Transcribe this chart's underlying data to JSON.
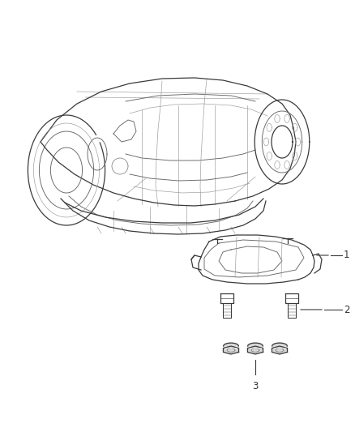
{
  "background_color": "#ffffff",
  "fig_width": 4.38,
  "fig_height": 5.33,
  "dpi": 100,
  "line_color": "#3a3a3a",
  "line_color_med": "#666666",
  "line_color_light": "#999999",
  "label_color": "#333333",
  "label_fontsize": 8.5
}
